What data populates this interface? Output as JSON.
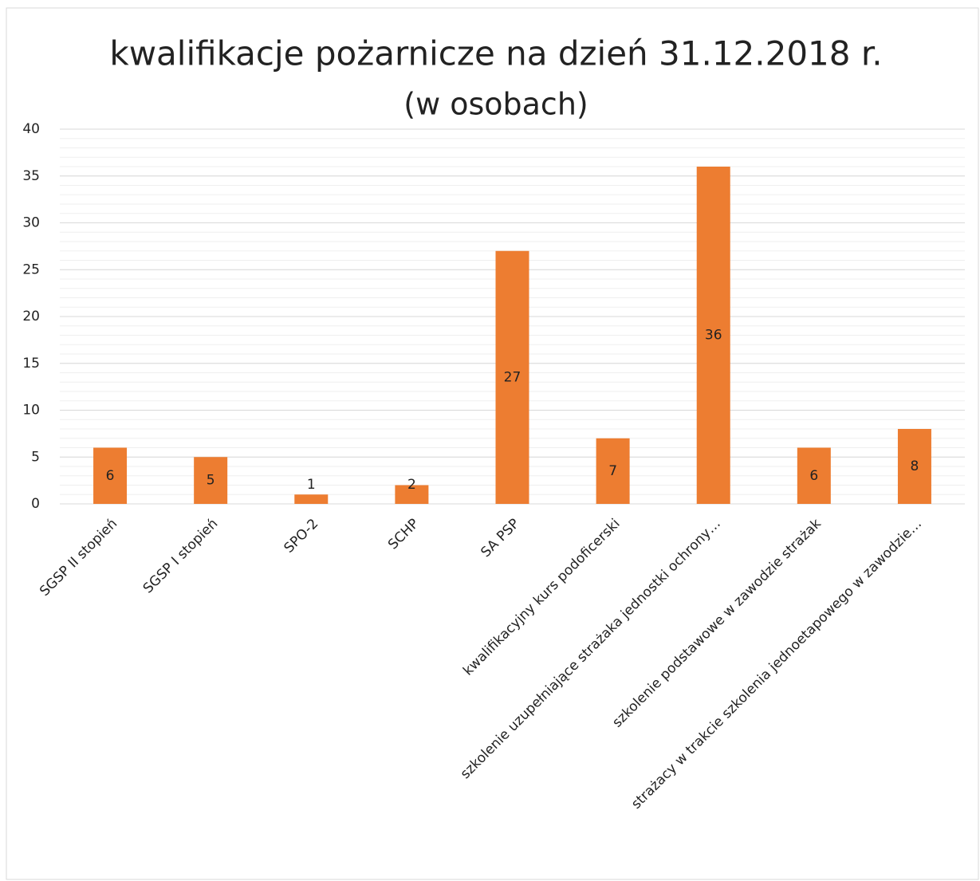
{
  "chart_data": {
    "type": "bar",
    "title": "kwalifikacje pożarnicze na dzień 31.12.2018 r.",
    "subtitle": "(w  osobach)",
    "categories": [
      "SGSP II stopień",
      "SGSP I stopień",
      "SPO-2",
      "SCHP",
      "SA PSP",
      "kwalifikacyjny kurs podoficerski",
      "szkolenie uzupełniające strażaka jednostki ochrony…",
      "szkolenie podstawowe w zawodzie strażak",
      "strażacy w trakcie szkolenia jednoetapowego w zawodzie…"
    ],
    "values": [
      6,
      5,
      1,
      2,
      27,
      7,
      36,
      6,
      8
    ],
    "color": "#ed7d31",
    "ylim": [
      0,
      40
    ],
    "yticks": [
      0,
      5,
      10,
      15,
      20,
      25,
      30,
      35,
      40
    ],
    "grid": true,
    "minor_grid_step": 1
  }
}
